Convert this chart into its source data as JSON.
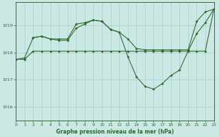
{
  "title": "Graphe pression niveau de la mer (hPa)",
  "background_color": "#cce8e4",
  "grid_color": "#aad4cc",
  "line_color": "#2d6a2d",
  "xlim": [
    0,
    23
  ],
  "ylim": [
    1015.5,
    1019.85
  ],
  "yticks": [
    1016,
    1017,
    1018,
    1019
  ],
  "xticks": [
    0,
    1,
    2,
    3,
    4,
    5,
    6,
    7,
    8,
    9,
    10,
    11,
    12,
    13,
    14,
    15,
    16,
    17,
    18,
    19,
    20,
    21,
    22,
    23
  ],
  "s1x": [
    0,
    1,
    2,
    3,
    4,
    5,
    6,
    7,
    8,
    9,
    10,
    11,
    12,
    13,
    14,
    15,
    16,
    17,
    18,
    19,
    20,
    21,
    22,
    23
  ],
  "s1y": [
    1017.75,
    1017.75,
    1018.05,
    1018.05,
    1018.05,
    1018.05,
    1018.05,
    1018.05,
    1018.05,
    1018.05,
    1018.05,
    1018.05,
    1018.05,
    1018.05,
    1018.05,
    1018.05,
    1018.05,
    1018.05,
    1018.05,
    1018.05,
    1018.05,
    1018.05,
    1018.05,
    1019.6
  ],
  "s2x": [
    0,
    1,
    2,
    3,
    4,
    5,
    6,
    7,
    8,
    9,
    10,
    11,
    12,
    13,
    14,
    15,
    16,
    17,
    18,
    19,
    20,
    21,
    22,
    23
  ],
  "s2y": [
    1017.75,
    1017.8,
    1018.55,
    1018.6,
    1018.5,
    1018.5,
    1018.5,
    1019.05,
    1019.1,
    1019.2,
    1019.15,
    1018.85,
    1018.75,
    1018.5,
    1018.15,
    1018.1,
    1018.1,
    1018.1,
    1018.1,
    1018.1,
    1018.1,
    1019.15,
    1019.5,
    1019.6
  ],
  "s3x": [
    2,
    3,
    4,
    5,
    6,
    7,
    8,
    9,
    10,
    11,
    12,
    13,
    14,
    15,
    16,
    17,
    18,
    19,
    20,
    21,
    22,
    23
  ],
  "s3y": [
    1018.55,
    1018.6,
    1018.5,
    1018.45,
    1018.45,
    1018.9,
    1019.05,
    1019.2,
    1019.15,
    1018.85,
    1018.75,
    1017.85,
    1017.1,
    1016.75,
    1016.65,
    1016.85,
    1017.15,
    1017.35,
    1018.05,
    1018.7,
    1019.1,
    1019.6
  ]
}
